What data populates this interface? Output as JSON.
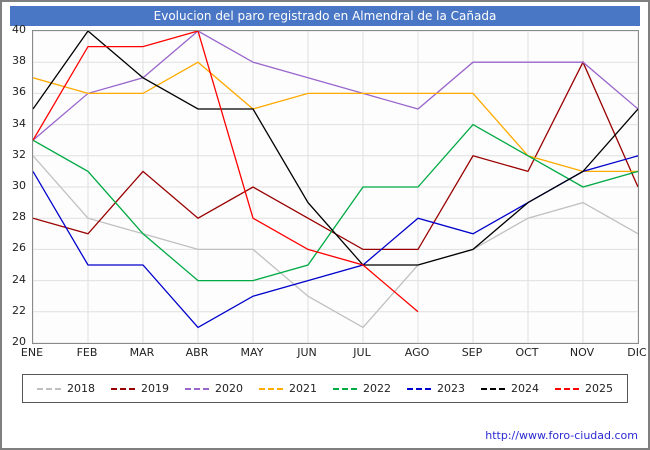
{
  "title": "Evolucion del paro registrado en Almendral de la Cañada",
  "footer": {
    "url": "http://www.foro-ciudad.com"
  },
  "colors": {
    "title_bar": "#4a77c5",
    "title_text": "#ffffff",
    "grid": "#e0e0e0",
    "axis": "#8a8a8a",
    "tick_text": "#222222",
    "link": "#2b2bd4"
  },
  "chart_data": {
    "type": "line",
    "title": "Evolucion del paro registrado en Almendral de la Cañada",
    "categories": [
      "ENE",
      "FEB",
      "MAR",
      "ABR",
      "MAY",
      "JUN",
      "JUL",
      "AGO",
      "SEP",
      "OCT",
      "NOV",
      "DIC"
    ],
    "ylim": [
      20,
      40
    ],
    "ytick_step": 2,
    "grid": true,
    "legend_position": "bottom",
    "xlabel": "",
    "ylabel": "",
    "series": [
      {
        "name": "2018",
        "color": "#c0c0c0",
        "values": [
          32,
          28,
          27,
          26,
          26,
          23,
          21,
          25,
          26,
          28,
          29,
          27
        ]
      },
      {
        "name": "2019",
        "color": "#990000",
        "values": [
          28,
          27,
          31,
          28,
          30,
          28,
          26,
          26,
          32,
          31,
          38,
          30
        ]
      },
      {
        "name": "2020",
        "color": "#9966cc",
        "values": [
          33,
          36,
          37,
          40,
          38,
          37,
          36,
          35,
          38,
          38,
          38,
          35
        ]
      },
      {
        "name": "2021",
        "color": "#ffaa00",
        "values": [
          37,
          36,
          36,
          38,
          35,
          36,
          36,
          36,
          36,
          32,
          31,
          31
        ]
      },
      {
        "name": "2022",
        "color": "#00aa44",
        "values": [
          33,
          31,
          27,
          24,
          24,
          25,
          30,
          30,
          34,
          32,
          30,
          31
        ]
      },
      {
        "name": "2023",
        "color": "#0000cc",
        "values": [
          31,
          25,
          25,
          21,
          23,
          24,
          25,
          28,
          27,
          29,
          31,
          32
        ]
      },
      {
        "name": "2024",
        "color": "#000000",
        "values": [
          35,
          40,
          37,
          35,
          35,
          29,
          25,
          25,
          26,
          29,
          31,
          35
        ]
      },
      {
        "name": "2025",
        "color": "#ff0000",
        "values": [
          33,
          39,
          39,
          40,
          28,
          26,
          25,
          22,
          null,
          null,
          null,
          null
        ]
      }
    ]
  }
}
